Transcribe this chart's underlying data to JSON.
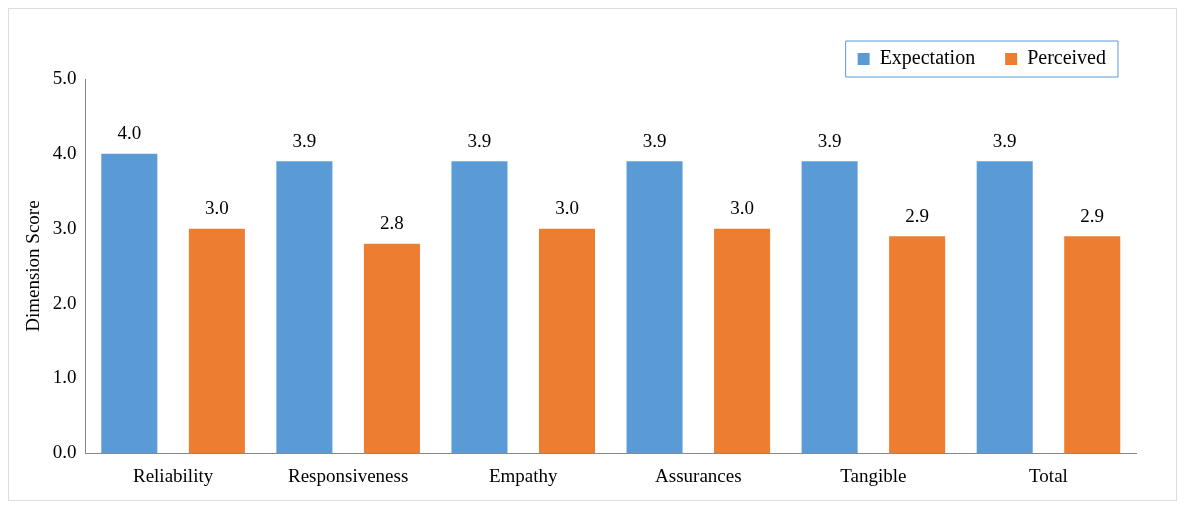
{
  "chart_data": {
    "type": "bar",
    "ylabel": "Dimension Score",
    "categories": [
      "Reliability",
      "Responsiveness",
      "Empathy",
      "Assurances",
      "Tangible",
      "Total"
    ],
    "series": [
      {
        "name": "Expectation",
        "color": "#5b9bd5",
        "values": [
          4.0,
          3.9,
          3.9,
          3.9,
          3.9,
          3.9
        ],
        "value_labels": [
          "4.0",
          "3.9",
          "3.9",
          "3.9",
          "3.9",
          "3.9"
        ]
      },
      {
        "name": "Perceived",
        "color": "#ed7d31",
        "values": [
          3.0,
          2.8,
          3.0,
          3.0,
          2.9,
          2.9
        ],
        "value_labels": [
          "3.0",
          "2.8",
          "3.0",
          "3.0",
          "2.9",
          "2.9"
        ]
      }
    ],
    "ylim": [
      0,
      5
    ],
    "yticks": [
      {
        "value": 0,
        "label": "0.0"
      },
      {
        "value": 1,
        "label": "1.0"
      },
      {
        "value": 2,
        "label": "2.0"
      },
      {
        "value": 3,
        "label": "3.0"
      },
      {
        "value": 4,
        "label": "4.0"
      },
      {
        "value": 5,
        "label": "5.0"
      }
    ],
    "grid": false,
    "legend": "top right"
  }
}
